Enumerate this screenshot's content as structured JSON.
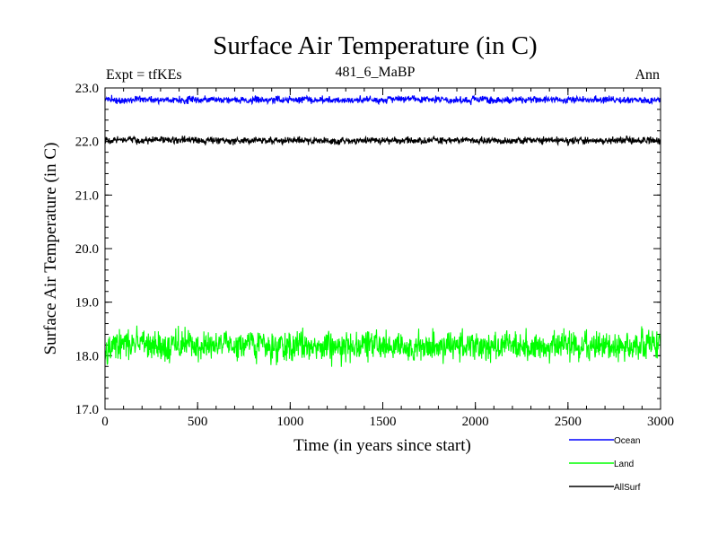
{
  "chart_data": {
    "type": "line",
    "title": "Surface Air Temperature (in C)",
    "subtitle": "481_6_MaBP",
    "left_label": "Expt = tfKEs",
    "right_label": "Ann",
    "xlabel": "Time (in years since start)",
    "ylabel": "Surface Air Temperature (in C)",
    "xlim": [
      0,
      3000
    ],
    "ylim": [
      17.0,
      23.0
    ],
    "x_ticks": [
      0,
      500,
      1000,
      1500,
      2000,
      2500,
      3000
    ],
    "x_tick_labels": [
      "0",
      "500",
      "1000",
      "1500",
      "2000",
      "2500",
      "3000"
    ],
    "y_ticks": [
      17.0,
      18.0,
      19.0,
      20.0,
      21.0,
      22.0,
      23.0
    ],
    "y_tick_labels": [
      "17.0",
      "18.0",
      "19.0",
      "20.0",
      "21.0",
      "22.0",
      "23.0"
    ],
    "grid": false,
    "legend_position": "bottom-right, below plot",
    "series": [
      {
        "name": "Ocean",
        "color": "#0000ff",
        "mean": 22.78,
        "range": [
          22.65,
          22.92
        ],
        "x_range": [
          0,
          3000
        ]
      },
      {
        "name": "Land",
        "color": "#00ff00",
        "mean": 18.18,
        "range": [
          17.6,
          18.72
        ],
        "x_range": [
          0,
          3000
        ]
      },
      {
        "name": "AllSurf",
        "color": "#000000",
        "mean": 22.02,
        "range": [
          21.88,
          22.15
        ],
        "x_range": [
          0,
          3000
        ]
      }
    ]
  }
}
